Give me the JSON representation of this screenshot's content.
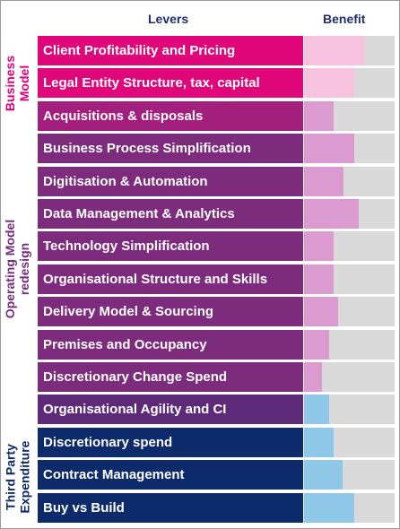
{
  "headers": {
    "levers": "Levers",
    "benefit": "Benefit"
  },
  "groups": [
    {
      "label": "Business Model",
      "lines": [
        "Business",
        "Model"
      ],
      "color": "#e5007e"
    },
    {
      "label": "Operating Model redesign",
      "lines": [
        "Operating Model",
        "redesign"
      ],
      "color": "#7a2c7e"
    },
    {
      "label": "Third Party Expenditure",
      "lines": [
        "Third Party",
        "Expenditure"
      ],
      "color": "#0d2a6b"
    }
  ],
  "levers": [
    {
      "label": "Client Profitability and Pricing",
      "group": 0,
      "color": "#e0077a",
      "benefit_fraction": 0.66,
      "benefit_color": "#f7c3df"
    },
    {
      "label": "Legal Entity Structure, tax, capital",
      "group": 0,
      "color": "#e0077a",
      "benefit_fraction": 0.55,
      "benefit_color": "#f7c3df"
    },
    {
      "label": "Acquisitions & disposals",
      "group": 1,
      "color": "#a21f7e",
      "benefit_fraction": 0.33,
      "benefit_color": "#db9ad0"
    },
    {
      "label": "Business Process Simplification",
      "group": 1,
      "color": "#7d2b7d",
      "benefit_fraction": 0.55,
      "benefit_color": "#db9ad0"
    },
    {
      "label": "Digitisation & Automation",
      "group": 1,
      "color": "#7d2b7d",
      "benefit_fraction": 0.44,
      "benefit_color": "#db9ad0"
    },
    {
      "label": "Data Management & Analytics",
      "group": 1,
      "color": "#7d2b7d",
      "benefit_fraction": 0.6,
      "benefit_color": "#db9ad0"
    },
    {
      "label": "Technology Simplification",
      "group": 1,
      "color": "#7d2b7d",
      "benefit_fraction": 0.33,
      "benefit_color": "#db9ad0"
    },
    {
      "label": "Organisational Structure and Skills",
      "group": 1,
      "color": "#7d2b7d",
      "benefit_fraction": 0.33,
      "benefit_color": "#db9ad0"
    },
    {
      "label": "Delivery Model & Sourcing",
      "group": 1,
      "color": "#7d2b7d",
      "benefit_fraction": 0.38,
      "benefit_color": "#db9ad0"
    },
    {
      "label": "Premises and Occupancy",
      "group": 1,
      "color": "#7d2b7d",
      "benefit_fraction": 0.28,
      "benefit_color": "#db9ad0"
    },
    {
      "label": "Discretionary Change Spend",
      "group": 1,
      "color": "#7d2b7d",
      "benefit_fraction": 0.2,
      "benefit_color": "#db9ad0"
    },
    {
      "label": "Organisational Agility and CI",
      "group": 1,
      "color": "#5c2a79",
      "benefit_fraction": 0.28,
      "benefit_color": "#8fc7e8"
    },
    {
      "label": "Discretionary spend",
      "group": 2,
      "color": "#0d2a6b",
      "benefit_fraction": 0.33,
      "benefit_color": "#8fc7e8"
    },
    {
      "label": "Contract Management",
      "group": 2,
      "color": "#0d2a6b",
      "benefit_fraction": 0.43,
      "benefit_color": "#8fc7e8"
    },
    {
      "label": "Buy vs Build",
      "group": 2,
      "color": "#0d2a6b",
      "benefit_fraction": 0.55,
      "benefit_color": "#8fc7e8"
    }
  ]
}
